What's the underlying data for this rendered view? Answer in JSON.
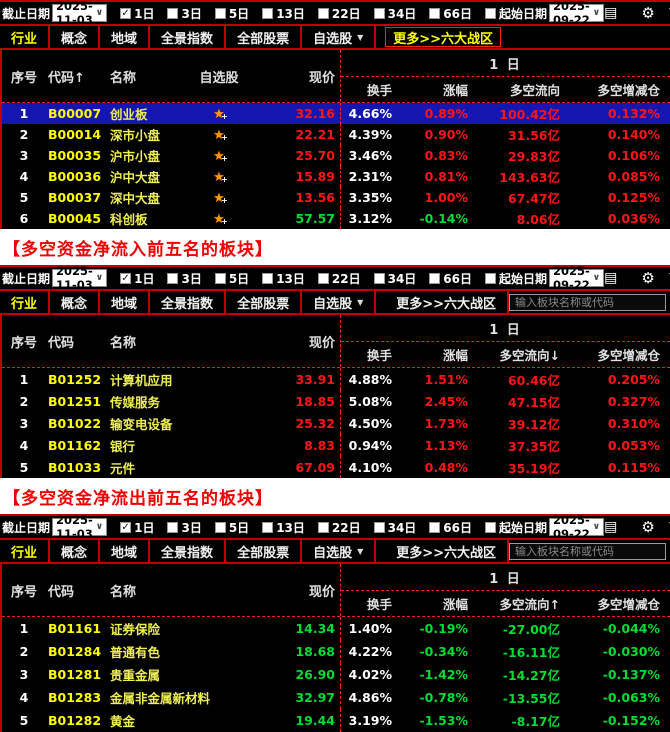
{
  "colors": {
    "up": "#ff1515",
    "down": "#00dd33",
    "accent_red": "#c00000",
    "tab_active_yellow": "#ffff00",
    "code_yellow": "#ffff00",
    "name_yellow": "#eeee55",
    "selected_row_blue": "#1515b0"
  },
  "toolbar": {
    "end_date_label": "截止日期",
    "end_date_value": "2025-11-03",
    "periods": [
      {
        "label": "1日",
        "checked": true
      },
      {
        "label": "3日",
        "checked": false
      },
      {
        "label": "5日",
        "checked": false
      },
      {
        "label": "13日",
        "checked": false
      },
      {
        "label": "22日",
        "checked": false
      },
      {
        "label": "34日",
        "checked": false
      },
      {
        "label": "66日",
        "checked": false
      }
    ],
    "start_date_label": "起始日期",
    "start_date_checked": false,
    "start_date_value": "2025-09-22",
    "icons": [
      "list-view-icon",
      "settings-gear-icon",
      "filter-funnel-icon"
    ]
  },
  "tabs": [
    {
      "label": "行业",
      "active": true
    },
    {
      "label": "概念"
    },
    {
      "label": "地域"
    },
    {
      "label": "全景指数"
    },
    {
      "label": "全部股票"
    },
    {
      "label": "自选股",
      "dropdown": true
    },
    {
      "label": "更多>>六大战区",
      "more": true
    }
  ],
  "search": {
    "placeholder": "输入板块名称或代码"
  },
  "sections": [
    {
      "has_fav": true,
      "show_search": false,
      "more_boxed": true,
      "header": {
        "seq": "序号",
        "code": "代码↑",
        "name": "名称",
        "fav": "自选股",
        "price": "现价",
        "group": "1 日",
        "turnover": "换手",
        "change": "涨幅",
        "flow": "多空流向",
        "pos": "多空增减仓"
      },
      "rows": [
        {
          "seq": "1",
          "code": "B00007",
          "name": "创业板",
          "price": "32.16",
          "pc": "u",
          "turnover": "4.66%",
          "change": "0.89%",
          "cc": "u",
          "flow": "100.42亿",
          "fc": "u",
          "pos": "0.132%",
          "oc": "u",
          "selected": true
        },
        {
          "seq": "2",
          "code": "B00014",
          "name": "深市小盘",
          "price": "22.21",
          "pc": "u",
          "turnover": "4.39%",
          "change": "0.90%",
          "cc": "u",
          "flow": "31.56亿",
          "fc": "u",
          "pos": "0.140%",
          "oc": "u"
        },
        {
          "seq": "3",
          "code": "B00035",
          "name": "沪市小盘",
          "price": "25.70",
          "pc": "u",
          "turnover": "3.46%",
          "change": "0.83%",
          "cc": "u",
          "flow": "29.83亿",
          "fc": "u",
          "pos": "0.106%",
          "oc": "u"
        },
        {
          "seq": "4",
          "code": "B00036",
          "name": "沪中大盘",
          "price": "15.89",
          "pc": "u",
          "turnover": "2.31%",
          "change": "0.81%",
          "cc": "u",
          "flow": "143.63亿",
          "fc": "u",
          "pos": "0.085%",
          "oc": "u"
        },
        {
          "seq": "5",
          "code": "B00037",
          "name": "深中大盘",
          "price": "13.56",
          "pc": "u",
          "turnover": "3.35%",
          "change": "1.00%",
          "cc": "u",
          "flow": "67.47亿",
          "fc": "u",
          "pos": "0.125%",
          "oc": "u"
        },
        {
          "seq": "6",
          "code": "B00045",
          "name": "科创板",
          "price": "57.57",
          "pc": "d",
          "turnover": "3.12%",
          "change": "-0.14%",
          "cc": "d",
          "flow": "8.06亿",
          "fc": "u",
          "pos": "0.036%",
          "oc": "u"
        }
      ]
    },
    {
      "title": "【多空资金净流入前五名的板块】",
      "has_fav": false,
      "show_search": true,
      "more_boxed": false,
      "header": {
        "seq": "序号",
        "code": "代码",
        "name": "名称",
        "price": "现价",
        "group": "1 日",
        "turnover": "换手",
        "change": "涨幅",
        "flow": "多空流向↓",
        "pos": "多空增减仓"
      },
      "rows": [
        {
          "seq": "1",
          "code": "B01252",
          "name": "计算机应用",
          "price": "33.91",
          "pc": "u",
          "turnover": "4.88%",
          "change": "1.51%",
          "cc": "u",
          "flow": "60.46亿",
          "fc": "u",
          "pos": "0.205%",
          "oc": "u"
        },
        {
          "seq": "2",
          "code": "B01251",
          "name": "传媒服务",
          "price": "18.85",
          "pc": "u",
          "turnover": "5.08%",
          "change": "2.45%",
          "cc": "u",
          "flow": "47.15亿",
          "fc": "u",
          "pos": "0.327%",
          "oc": "u"
        },
        {
          "seq": "3",
          "code": "B01022",
          "name": "输变电设备",
          "price": "25.32",
          "pc": "u",
          "turnover": "4.50%",
          "change": "1.73%",
          "cc": "u",
          "flow": "39.12亿",
          "fc": "u",
          "pos": "0.310%",
          "oc": "u"
        },
        {
          "seq": "4",
          "code": "B01162",
          "name": "银行",
          "price": "8.83",
          "pc": "u",
          "turnover": "0.94%",
          "change": "1.13%",
          "cc": "u",
          "flow": "37.35亿",
          "fc": "u",
          "pos": "0.053%",
          "oc": "u"
        },
        {
          "seq": "5",
          "code": "B01033",
          "name": "元件",
          "price": "67.09",
          "pc": "u",
          "turnover": "4.10%",
          "change": "0.48%",
          "cc": "u",
          "flow": "35.19亿",
          "fc": "u",
          "pos": "0.115%",
          "oc": "u"
        }
      ]
    },
    {
      "title": "【多空资金净流出前五名的板块】",
      "has_fav": false,
      "show_search": true,
      "more_boxed": false,
      "header": {
        "seq": "序号",
        "code": "代码",
        "name": "名称",
        "price": "现价",
        "group": "1 日",
        "turnover": "换手",
        "change": "涨幅",
        "flow": "多空流向↑",
        "pos": "多空增减仓"
      },
      "rows": [
        {
          "seq": "1",
          "code": "B01161",
          "name": "证券保险",
          "price": "14.34",
          "pc": "d",
          "turnover": "1.40%",
          "change": "-0.19%",
          "cc": "d",
          "flow": "-27.00亿",
          "fc": "d",
          "pos": "-0.044%",
          "oc": "d"
        },
        {
          "seq": "2",
          "code": "B01284",
          "name": "普通有色",
          "price": "18.68",
          "pc": "d",
          "turnover": "4.22%",
          "change": "-0.34%",
          "cc": "d",
          "flow": "-16.11亿",
          "fc": "d",
          "pos": "-0.030%",
          "oc": "d"
        },
        {
          "seq": "3",
          "code": "B01281",
          "name": "贵重金属",
          "price": "26.90",
          "pc": "d",
          "turnover": "4.02%",
          "change": "-1.42%",
          "cc": "d",
          "flow": "-14.27亿",
          "fc": "d",
          "pos": "-0.137%",
          "oc": "d"
        },
        {
          "seq": "4",
          "code": "B01283",
          "name": "金属非金属新材料",
          "price": "32.97",
          "pc": "d",
          "turnover": "4.86%",
          "change": "-0.78%",
          "cc": "d",
          "flow": "-13.55亿",
          "fc": "d",
          "pos": "-0.063%",
          "oc": "d"
        },
        {
          "seq": "5",
          "code": "B01282",
          "name": "黄金",
          "price": "19.44",
          "pc": "d",
          "turnover": "3.19%",
          "change": "-1.53%",
          "cc": "d",
          "flow": "-8.17亿",
          "fc": "d",
          "pos": "-0.152%",
          "oc": "d"
        }
      ]
    }
  ]
}
